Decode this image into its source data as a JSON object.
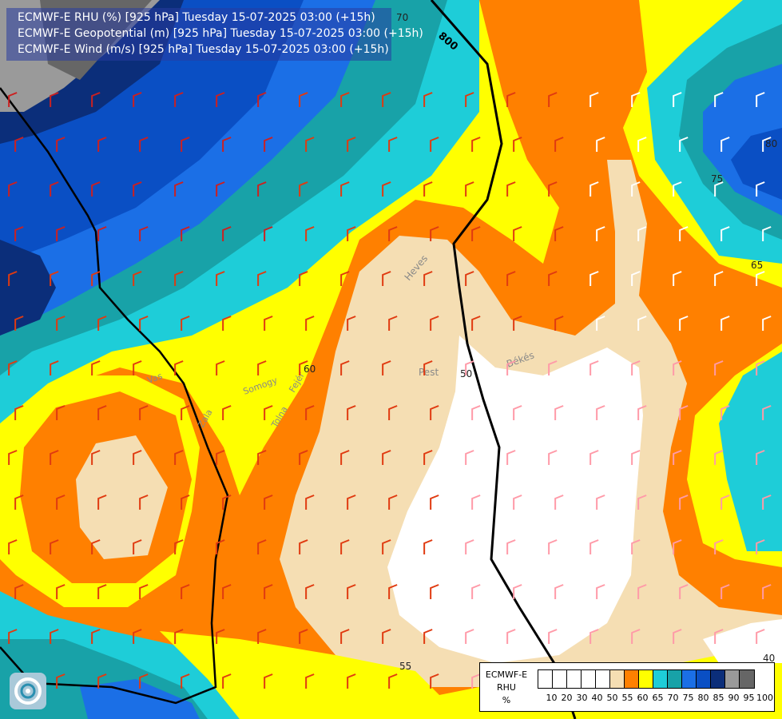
{
  "titles": [
    {
      "text": "ECMWF-E RHU (%) [925 hPa] Tuesday 15-07-2025 03:00 (+15h)",
      "color": "#ffffff"
    },
    {
      "text": "ECMWF-E Geopotential (m) [925 hPa] Tuesday 15-07-2025 03:00 (+15h)",
      "color": "#e8e8ff"
    },
    {
      "text": "ECMWF-E Wind (m/s) [925 hPa] Tuesday 15-07-2025 03:00 (+15h)",
      "color": "#e8e8ff"
    }
  ],
  "legend": {
    "name_lines": [
      "ECMWF-E",
      "RHU",
      "%"
    ],
    "levels": [
      "10",
      "20",
      "30",
      "40",
      "50",
      "55",
      "60",
      "65",
      "70",
      "75",
      "80",
      "85",
      "90",
      "95",
      "100"
    ],
    "colors": [
      "#ffffff",
      "#ffffff",
      "#ffffff",
      "#ffffff",
      "#ffffff",
      "#f5deb3",
      "#ff8000",
      "#ffff00",
      "#1ecdd8",
      "#18a2a8",
      "#1b6fe6",
      "#0a4fc4",
      "#0b2e7a",
      "#9a9a9a",
      "#666666"
    ]
  },
  "contour_labels": [
    "800",
    "70",
    "60",
    "55",
    "50",
    "65",
    "75",
    "80",
    "40"
  ],
  "region_labels": [
    "Heves",
    "Pest",
    "Békés",
    "Fejér",
    "Somogy",
    "Tolna",
    "Vas",
    "Zala"
  ],
  "logo": {
    "icon": "ecmwf-swirl-logo"
  }
}
